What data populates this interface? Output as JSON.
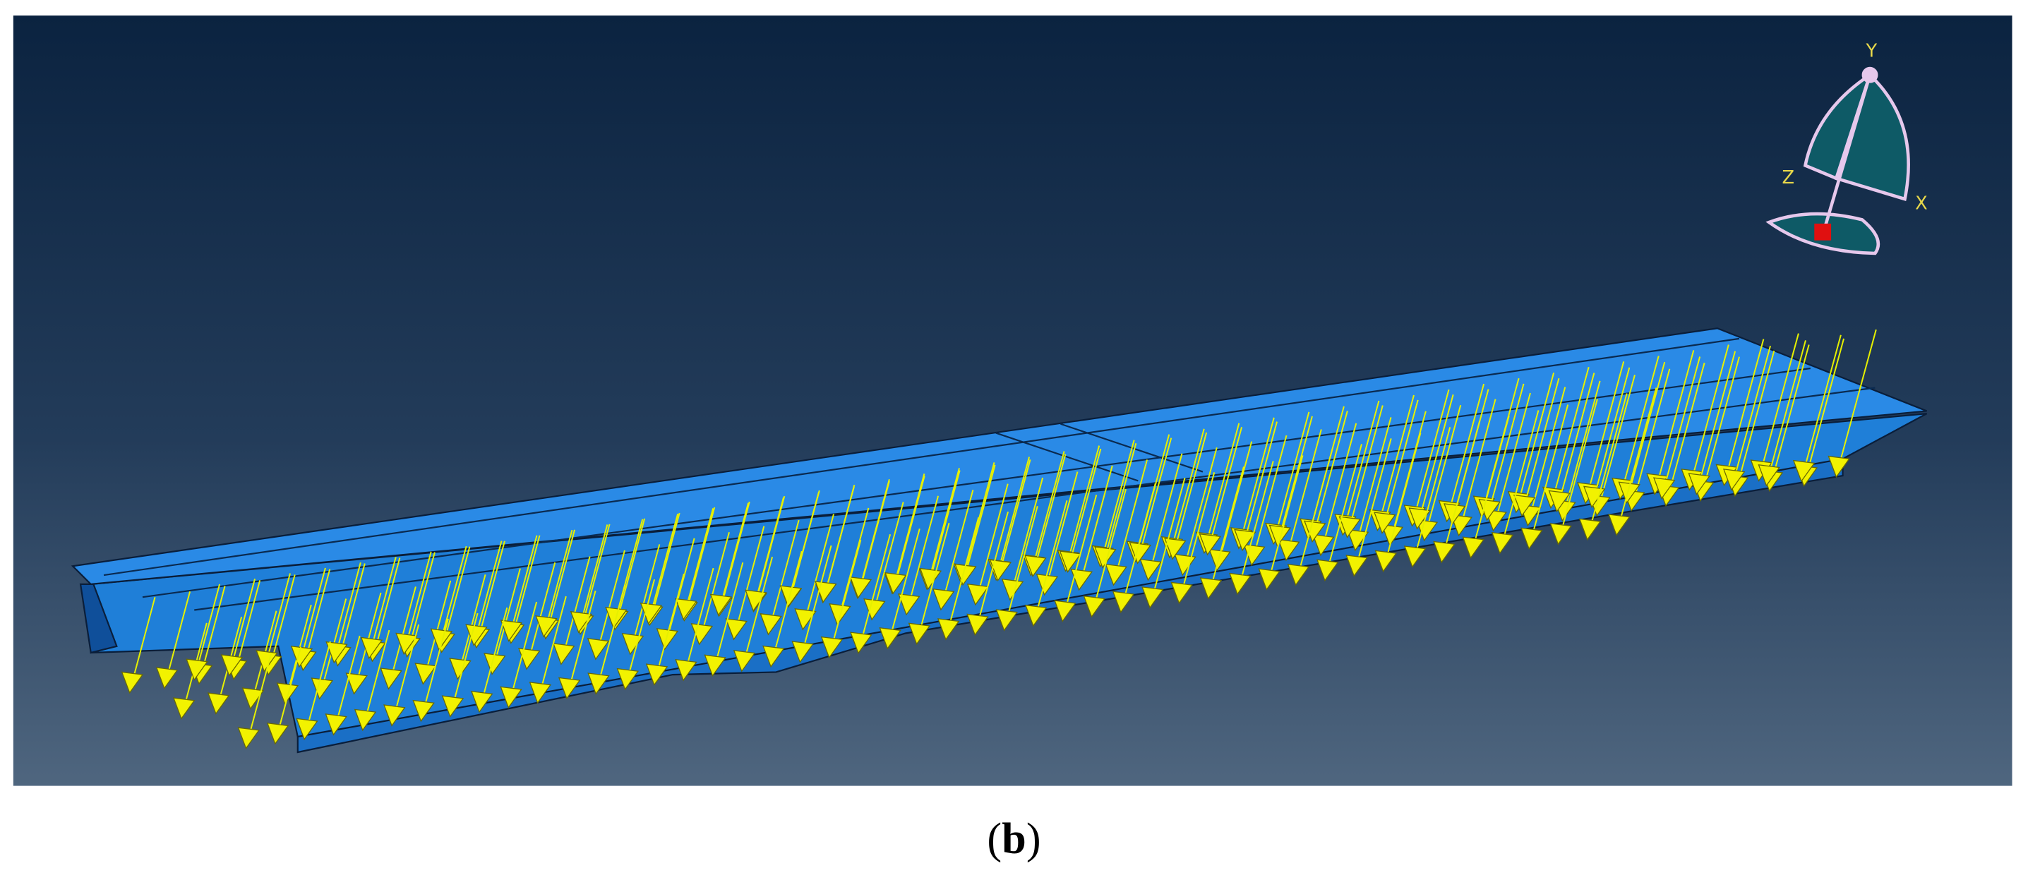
{
  "triad": {
    "y_label": "Y",
    "z_label": "Z",
    "x_label": "X"
  },
  "caption": {
    "open": "(",
    "letter": "b",
    "close": ")"
  }
}
